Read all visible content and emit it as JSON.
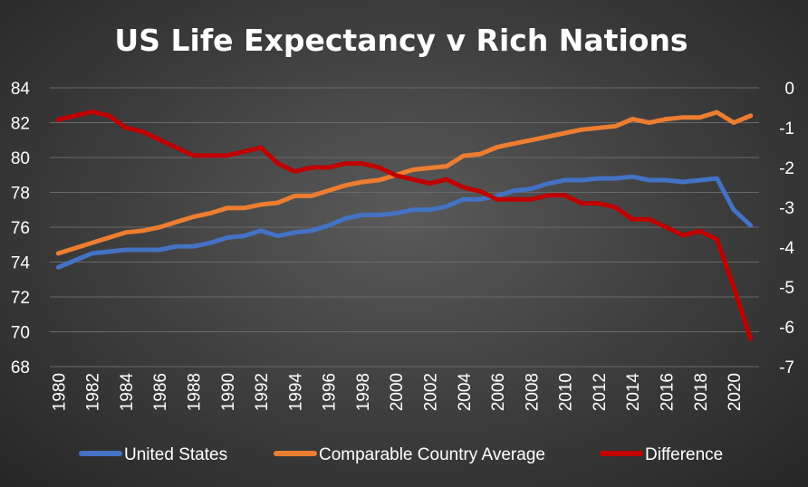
{
  "chart_data": {
    "type": "line",
    "title": "US Life Expectancy v Rich Nations",
    "x": [
      1980,
      1981,
      1982,
      1983,
      1984,
      1985,
      1986,
      1987,
      1988,
      1989,
      1990,
      1991,
      1992,
      1993,
      1994,
      1995,
      1996,
      1997,
      1998,
      1999,
      2000,
      2001,
      2002,
      2003,
      2004,
      2005,
      2006,
      2007,
      2008,
      2009,
      2010,
      2011,
      2012,
      2013,
      2014,
      2015,
      2016,
      2017,
      2018,
      2019,
      2020,
      2021
    ],
    "x_tick_labels": [
      "1980",
      "1982",
      "1984",
      "1986",
      "1988",
      "1990",
      "1992",
      "1994",
      "1996",
      "1998",
      "2000",
      "2002",
      "2004",
      "2006",
      "2008",
      "2010",
      "2012",
      "2014",
      "2016",
      "2018",
      "2020"
    ],
    "y_left": {
      "range": [
        68,
        84
      ],
      "ticks": [
        "68",
        "70",
        "72",
        "74",
        "76",
        "78",
        "80",
        "82",
        "84"
      ]
    },
    "y_right": {
      "range": [
        -7,
        0
      ],
      "ticks": [
        "-7",
        "-6",
        "-5",
        "-4",
        "-3",
        "-2",
        "-1",
        "0"
      ]
    },
    "grid": true,
    "legend_position": "bottom",
    "series": [
      {
        "name": "United States",
        "axis": "left",
        "color": "#4472c4",
        "values": [
          73.7,
          74.1,
          74.5,
          74.6,
          74.7,
          74.7,
          74.7,
          74.9,
          74.9,
          75.1,
          75.4,
          75.5,
          75.8,
          75.5,
          75.7,
          75.8,
          76.1,
          76.5,
          76.7,
          76.7,
          76.8,
          77.0,
          77.0,
          77.2,
          77.6,
          77.6,
          77.8,
          78.1,
          78.2,
          78.5,
          78.7,
          78.7,
          78.8,
          78.8,
          78.9,
          78.7,
          78.7,
          78.6,
          78.7,
          78.8,
          77.0,
          76.1
        ]
      },
      {
        "name": "Comparable Country Average",
        "axis": "left",
        "color": "#ed7d31",
        "values": [
          74.5,
          74.8,
          75.1,
          75.4,
          75.7,
          75.8,
          76.0,
          76.3,
          76.6,
          76.8,
          77.1,
          77.1,
          77.3,
          77.4,
          77.8,
          77.8,
          78.1,
          78.4,
          78.6,
          78.7,
          79.0,
          79.3,
          79.4,
          79.5,
          80.1,
          80.2,
          80.6,
          80.8,
          81.0,
          81.2,
          81.4,
          81.6,
          81.7,
          81.8,
          82.2,
          82.0,
          82.2,
          82.3,
          82.3,
          82.6,
          82.0,
          82.4
        ]
      },
      {
        "name": "Difference",
        "axis": "right",
        "color": "#c00000",
        "values": [
          -0.8,
          -0.7,
          -0.6,
          -0.7,
          -1.0,
          -1.1,
          -1.3,
          -1.5,
          -1.7,
          -1.7,
          -1.7,
          -1.6,
          -1.5,
          -1.9,
          -2.1,
          -2.0,
          -2.0,
          -1.9,
          -1.9,
          -2.0,
          -2.2,
          -2.3,
          -2.4,
          -2.3,
          -2.5,
          -2.6,
          -2.8,
          -2.8,
          -2.8,
          -2.7,
          -2.7,
          -2.9,
          -2.9,
          -3.0,
          -3.3,
          -3.3,
          -3.5,
          -3.7,
          -3.6,
          -3.8,
          -5.0,
          -6.3
        ]
      }
    ]
  }
}
